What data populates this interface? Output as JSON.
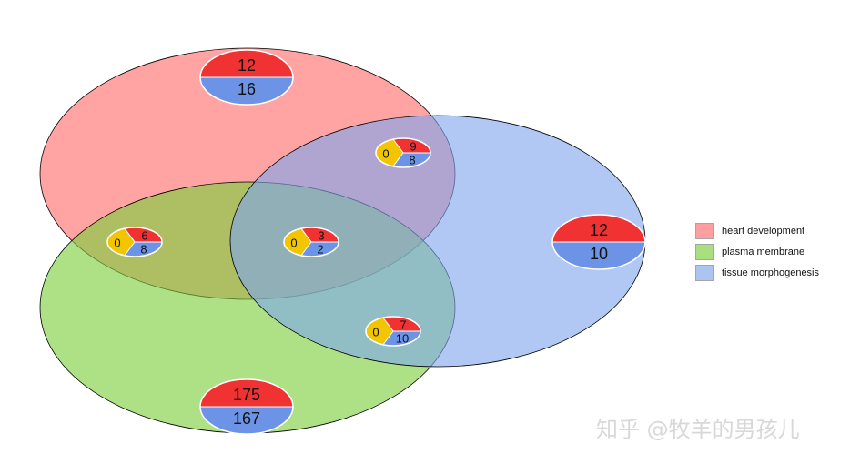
{
  "sets": [
    {
      "key": "heart",
      "label": "heart development",
      "color": "#ff6b6b"
    },
    {
      "key": "plasma",
      "label": "plasma membrane",
      "color": "#7ccf3c"
    },
    {
      "key": "tissue",
      "label": "tissue morphogenesis",
      "color": "#7fa6ec"
    }
  ],
  "colors": {
    "up": "#f03232",
    "down": "#6d93e6",
    "zero": "#f2c500"
  },
  "regions": [
    {
      "id": "heart-only",
      "sets": [
        "heart development"
      ],
      "up": "12",
      "down": "16"
    },
    {
      "id": "plasma-only",
      "sets": [
        "plasma membrane"
      ],
      "up": "175",
      "down": "167"
    },
    {
      "id": "tissue-only",
      "sets": [
        "tissue morphogenesis"
      ],
      "up": "12",
      "down": "10"
    },
    {
      "id": "heart-tissue",
      "sets": [
        "heart development",
        "tissue morphogenesis"
      ],
      "zero": "0",
      "up": "9",
      "down": "8"
    },
    {
      "id": "heart-plasma",
      "sets": [
        "heart development",
        "plasma membrane"
      ],
      "zero": "0",
      "up": "6",
      "down": "8"
    },
    {
      "id": "all-three",
      "sets": [
        "heart development",
        "plasma membrane",
        "tissue morphogenesis"
      ],
      "zero": "0",
      "up": "3",
      "down": "2"
    },
    {
      "id": "plasma-tissue",
      "sets": [
        "plasma membrane",
        "tissue morphogenesis"
      ],
      "zero": "0",
      "up": "7",
      "down": "10"
    }
  ],
  "watermark": "知乎 @牧羊的男孩儿"
}
